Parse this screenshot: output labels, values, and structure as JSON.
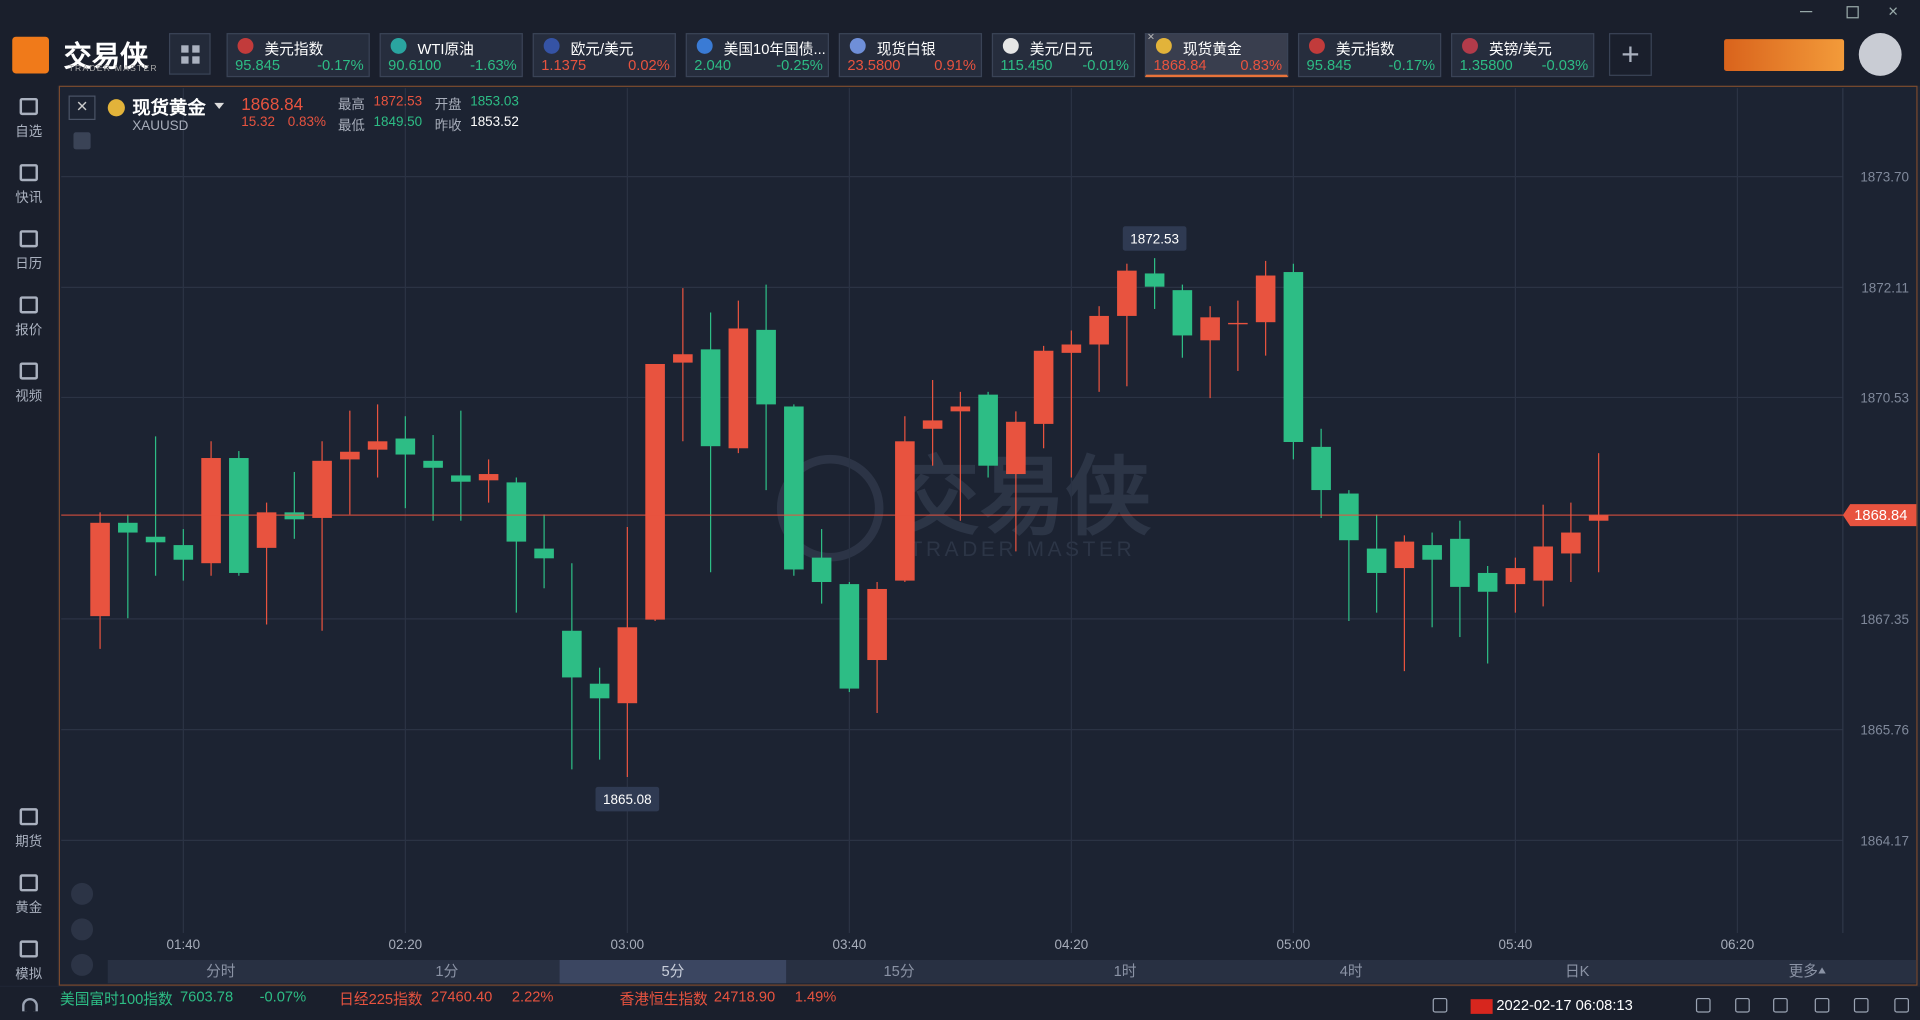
{
  "app": {
    "logo": "交易侠",
    "logo_sub": "TRADER MASTER"
  },
  "tickers": [
    {
      "name": "美元指数",
      "price": "95.845",
      "change": "-0.17%",
      "color": "#2dbd85",
      "flag": "#c23b3b"
    },
    {
      "name": "WTI原油",
      "price": "90.6100",
      "change": "-1.63%",
      "color": "#2dbd85",
      "flag": "#2aa5a0"
    },
    {
      "name": "欧元/美元",
      "price": "1.1375",
      "change": "0.02%",
      "color": "#e8533f",
      "flag": "#3553a5"
    },
    {
      "name": "美国10年国债...",
      "price": "2.040",
      "change": "-0.25%",
      "color": "#2dbd85",
      "flag": "#3a7bd5"
    },
    {
      "name": "现货白银",
      "price": "23.5800",
      "change": "0.91%",
      "color": "#e8533f",
      "flag": "#6f8fd8"
    },
    {
      "name": "美元/日元",
      "price": "115.450",
      "change": "-0.01%",
      "color": "#2dbd85",
      "flag": "#e6e6e6"
    },
    {
      "name": "现货黄金",
      "price": "1868.84",
      "change": "0.83%",
      "color": "#e8533f",
      "flag": "#e2b33a"
    },
    {
      "name": "美元指数",
      "price": "95.845",
      "change": "-0.17%",
      "color": "#2dbd85",
      "flag": "#c23b3b"
    },
    {
      "name": "英镑/美元",
      "price": "1.35800",
      "change": "-0.03%",
      "color": "#2dbd85",
      "flag": "#b23b4a"
    }
  ],
  "active_ticker": 6,
  "sidebar": {
    "top": [
      "自选",
      "快讯",
      "日历",
      "报价",
      "视频"
    ],
    "bottom": [
      "期货",
      "黄金",
      "模拟"
    ]
  },
  "instrument": {
    "name": "现货黄金",
    "symbol": "XAUUSD",
    "price": "1868.84",
    "change": "15.32",
    "change_pct": "0.83%",
    "stats": [
      {
        "label": "最高",
        "value": "1872.53",
        "color": "#e8533f"
      },
      {
        "label": "开盘",
        "value": "1853.03",
        "color": "#2dbd85"
      },
      {
        "label": "最低",
        "value": "1849.50",
        "color": "#2dbd85"
      },
      {
        "label": "昨收",
        "value": "1853.52",
        "color": "#ffffff"
      }
    ]
  },
  "chart_data": {
    "type": "candlestick",
    "x": [
      "01:25",
      "01:30",
      "01:35",
      "01:40",
      "01:45",
      "01:50",
      "01:55",
      "02:00",
      "02:05",
      "02:10",
      "02:15",
      "02:20",
      "02:25",
      "02:30",
      "02:35",
      "02:40",
      "02:45",
      "02:50",
      "02:55",
      "03:00",
      "03:05",
      "03:10",
      "03:15",
      "03:20",
      "03:25",
      "03:30",
      "03:35",
      "03:40",
      "03:45",
      "03:50",
      "03:55",
      "04:00",
      "04:05",
      "04:10",
      "04:15",
      "04:20",
      "04:25",
      "04:30",
      "04:35",
      "04:40",
      "04:45",
      "04:50",
      "04:55",
      "05:00",
      "05:05",
      "05:10",
      "05:15",
      "05:20",
      "05:25",
      "05:30",
      "05:35",
      "05:40",
      "05:45",
      "05:50",
      "05:55"
    ],
    "open": [
      1867.39,
      1868.73,
      1868.53,
      1868.41,
      1868.15,
      1869.66,
      1868.37,
      1868.88,
      1868.8,
      1869.64,
      1869.78,
      1869.94,
      1869.62,
      1869.41,
      1869.34,
      1869.31,
      1868.36,
      1867.18,
      1866.42,
      1866.14,
      1867.34,
      1871.03,
      1871.22,
      1869.8,
      1871.5,
      1870.4,
      1868.23,
      1867.85,
      1866.76,
      1867.9,
      1870.08,
      1870.33,
      1870.57,
      1869.43,
      1870.15,
      1871.17,
      1871.29,
      1871.7,
      1872.31,
      1872.07,
      1871.35,
      1871.58,
      1871.61,
      1872.33,
      1869.82,
      1869.15,
      1868.36,
      1868.08,
      1868.41,
      1868.5,
      1868.01,
      1867.85,
      1867.9,
      1868.29,
      1868.76
    ],
    "high": [
      1868.88,
      1868.85,
      1869.97,
      1868.64,
      1869.9,
      1869.76,
      1869.02,
      1869.46,
      1869.9,
      1870.34,
      1870.43,
      1870.26,
      1869.99,
      1870.34,
      1869.64,
      1869.38,
      1868.85,
      1868.15,
      1866.65,
      1868.67,
      1871.01,
      1872.1,
      1871.75,
      1871.92,
      1872.15,
      1870.43,
      1868.64,
      1867.88,
      1867.88,
      1870.26,
      1870.78,
      1870.61,
      1870.61,
      1870.33,
      1871.27,
      1871.49,
      1871.84,
      1872.45,
      1872.53,
      1872.15,
      1871.84,
      1871.92,
      1872.49,
      1872.45,
      1870.08,
      1869.2,
      1868.85,
      1868.55,
      1868.59,
      1868.76,
      1868.11,
      1868.23,
      1868.99,
      1869.02,
      1869.73
    ],
    "low": [
      1866.92,
      1867.36,
      1867.97,
      1867.9,
      1867.97,
      1867.97,
      1867.27,
      1868.5,
      1867.18,
      1868.85,
      1869.38,
      1868.94,
      1868.76,
      1868.76,
      1869.02,
      1867.44,
      1867.79,
      1865.19,
      1865.33,
      1865.08,
      1867.32,
      1869.9,
      1868.02,
      1869.73,
      1869.2,
      1867.97,
      1867.57,
      1866.3,
      1866.0,
      1867.88,
      1869.55,
      1868.76,
      1869.38,
      1868.32,
      1869.8,
      1869.38,
      1870.61,
      1870.69,
      1871.8,
      1871.1,
      1870.52,
      1870.91,
      1871.13,
      1869.64,
      1868.8,
      1867.32,
      1867.44,
      1866.6,
      1867.23,
      1867.09,
      1866.71,
      1867.44,
      1867.53,
      1867.88,
      1868.02
    ],
    "close": [
      1868.73,
      1868.59,
      1868.45,
      1868.2,
      1869.66,
      1868.01,
      1868.88,
      1868.78,
      1869.62,
      1869.75,
      1869.9,
      1869.71,
      1869.52,
      1869.32,
      1869.43,
      1868.46,
      1868.22,
      1866.51,
      1866.21,
      1867.23,
      1871.01,
      1871.15,
      1869.83,
      1871.52,
      1870.43,
      1868.06,
      1867.88,
      1866.35,
      1867.78,
      1869.9,
      1870.2,
      1870.4,
      1869.55,
      1870.18,
      1871.2,
      1871.29,
      1871.7,
      1872.35,
      1872.12,
      1871.42,
      1871.68,
      1871.6,
      1872.28,
      1869.89,
      1869.2,
      1868.48,
      1868.01,
      1868.46,
      1868.2,
      1867.81,
      1867.74,
      1868.08,
      1868.39,
      1868.59,
      1868.84
    ],
    "up_color": "#e8533f",
    "down_color": "#2dbd85",
    "xlim": [
      "01:18",
      "06:39"
    ],
    "xticks": [
      "01:40",
      "02:20",
      "03:00",
      "03:40",
      "04:20",
      "05:00",
      "05:40",
      "06:20"
    ],
    "ylim": [
      1862.84,
      1874.97
    ],
    "yticks": [
      1864.17,
      1865.76,
      1867.35,
      1870.53,
      1872.11,
      {
        "value": 1873.7,
        "label": "1873.70"
      }
    ],
    "grid": true,
    "last_price": 1868.84,
    "max_point": 38,
    "min_point": 19,
    "watermark": {
      "title": "交易侠",
      "subtitle": "TRADER MASTER"
    }
  },
  "timeframes": [
    "分时",
    "1分",
    "5分",
    "15分",
    "1时",
    "4时",
    "日K",
    "更多"
  ],
  "active_timeframe": 2,
  "status_bar": {
    "indices": [
      {
        "name": "美国富时100指数",
        "value": "7603.78",
        "change": "-0.07%",
        "color": "#2dbd85"
      },
      {
        "name": "日经225指数",
        "value": "27460.40",
        "change": "2.22%",
        "color": "#e8533f"
      },
      {
        "name": "香港恒生指数",
        "value": "24718.90",
        "change": "1.49%",
        "color": "#e8533f"
      }
    ],
    "datetime": "2022-02-17 06:08:13"
  }
}
